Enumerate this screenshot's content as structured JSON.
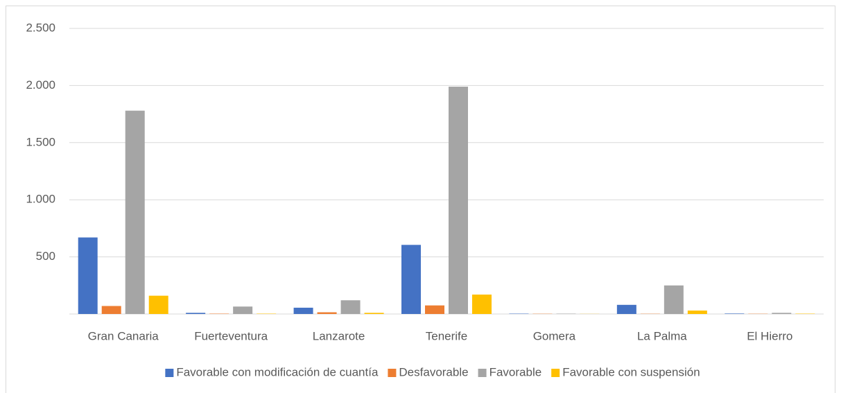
{
  "chart_data": {
    "type": "bar",
    "categories": [
      "Gran Canaria",
      "Fuerteventura",
      "Lanzarote",
      "Tenerife",
      "Gomera",
      "La Palma",
      "El Hierro"
    ],
    "series": [
      {
        "name": "Favorable con modificación de cuantía",
        "color": "#4472c4",
        "values": [
          670,
          10,
          55,
          605,
          3,
          80,
          4
        ]
      },
      {
        "name": "Desfavorable",
        "color": "#ed7d31",
        "values": [
          70,
          3,
          15,
          75,
          2,
          2,
          2
        ]
      },
      {
        "name": "Favorable",
        "color": "#a5a5a5",
        "values": [
          1780,
          65,
          120,
          1990,
          3,
          250,
          10
        ]
      },
      {
        "name": "Favorable con suspensión",
        "color": "#ffc000",
        "values": [
          160,
          3,
          10,
          170,
          1,
          30,
          3
        ]
      }
    ],
    "ylim": [
      0,
      2500
    ],
    "yticks": [
      {
        "value": 500,
        "label": "500"
      },
      {
        "value": 1000,
        "label": "1.000"
      },
      {
        "value": 1500,
        "label": "1.500"
      },
      {
        "value": 2000,
        "label": "2.000"
      },
      {
        "value": 2500,
        "label": "2.500"
      }
    ],
    "grid": true,
    "legend": "bottom"
  }
}
